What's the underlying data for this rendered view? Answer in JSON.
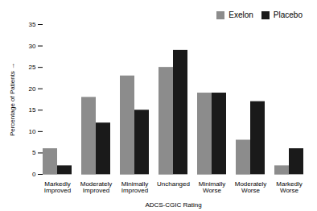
{
  "chart_data": {
    "type": "bar",
    "categories": [
      "Markedly\nImproved",
      "Moderately\nImproved",
      "Minimally\nImproved",
      "Unchanged",
      "Minimally\nWorse",
      "Moderately\nWorse",
      "Markedly\nWorse"
    ],
    "series": [
      {
        "name": "Exelon",
        "color": "#8c8c8c",
        "values": [
          6,
          18,
          23,
          25,
          19,
          8,
          2
        ]
      },
      {
        "name": "Placebo",
        "color": "#1a1a1a",
        "values": [
          2,
          12,
          15,
          29,
          19,
          17,
          6
        ]
      }
    ],
    "xlabel": "ADCS-CGIC Rating",
    "ylabel": "Percentage of Patients",
    "ylim": [
      0,
      35
    ],
    "yticks": [
      0,
      5,
      10,
      15,
      20,
      25,
      30,
      35
    ],
    "legend": "upper right",
    "grid": false
  }
}
